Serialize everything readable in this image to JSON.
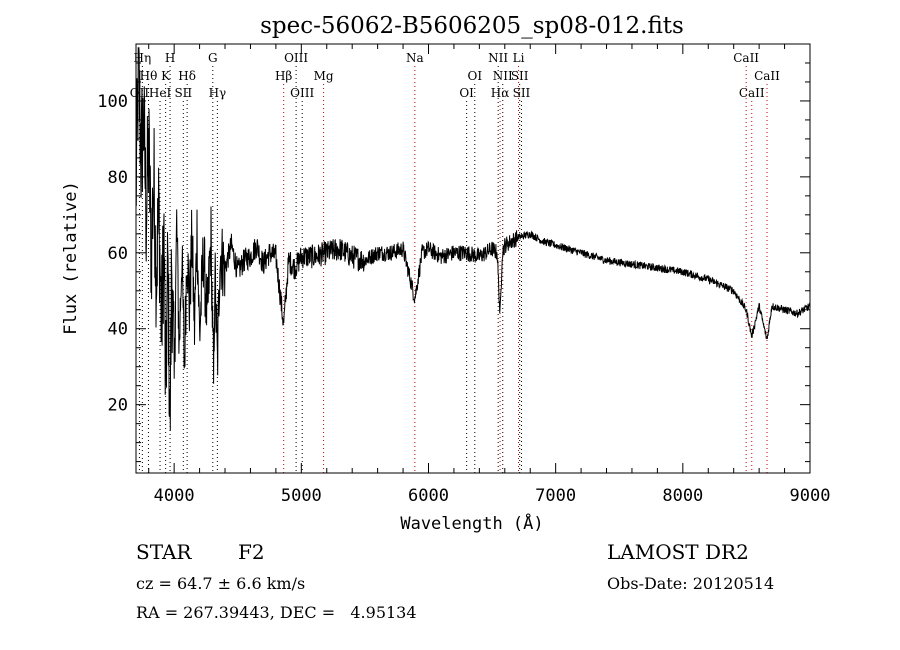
{
  "title": "spec-56062-B5606205_sp08-012.fits",
  "chart_data": {
    "type": "line",
    "xlabel": "Wavelength (Å)",
    "ylabel": "Flux (relative)",
    "xlim": [
      3700,
      9000
    ],
    "ylim": [
      2,
      115
    ],
    "x_ticks": [
      4000,
      5000,
      6000,
      7000,
      8000,
      9000
    ],
    "y_ticks": [
      20,
      40,
      60,
      80,
      100
    ],
    "grid": false,
    "series": [
      {
        "line_color": "#000000",
        "x": [
          3700,
          3720,
          3740,
          3760,
          3780,
          3800,
          3820,
          3840,
          3860,
          3880,
          3900,
          3920,
          3933,
          3950,
          3968,
          3980,
          4000,
          4020,
          4040,
          4060,
          4080,
          4102,
          4120,
          4140,
          4160,
          4180,
          4200,
          4230,
          4260,
          4290,
          4310,
          4320,
          4340,
          4360,
          4400,
          4450,
          4500,
          4550,
          4600,
          4650,
          4700,
          4750,
          4800,
          4861,
          4900,
          4950,
          5000,
          5100,
          5200,
          5300,
          5400,
          5500,
          5600,
          5700,
          5800,
          5893,
          5950,
          6000,
          6100,
          6200,
          6300,
          6400,
          6500,
          6540,
          6563,
          6580,
          6600,
          6700,
          6800,
          6900,
          7000,
          7200,
          7400,
          7600,
          7800,
          8000,
          8200,
          8400,
          8498,
          8542,
          8600,
          8662,
          8700,
          8800,
          8900,
          9000
        ],
        "y": [
          75,
          110,
          85,
          95,
          70,
          88,
          60,
          80,
          55,
          72,
          40,
          65,
          20,
          58,
          12,
          60,
          25,
          68,
          35,
          60,
          30,
          62,
          45,
          64,
          40,
          66,
          38,
          60,
          42,
          64,
          25,
          55,
          30,
          60,
          56,
          62,
          55,
          58,
          59,
          62,
          57,
          60,
          59,
          41,
          58,
          56,
          59,
          59,
          60,
          61,
          59,
          58,
          60,
          60,
          61,
          48,
          60,
          61,
          59,
          60,
          60,
          59,
          61,
          60,
          43,
          60,
          62,
          64,
          65,
          63,
          62,
          60,
          58,
          57,
          56,
          55,
          53,
          50,
          45,
          38,
          46,
          37,
          46,
          45,
          44,
          46
        ]
      }
    ],
    "line_markers": [
      {
        "wl": 3750,
        "label": "Hη",
        "row": 0,
        "color": "#000000"
      },
      {
        "wl": 3798,
        "label": "Hθ",
        "row": 1,
        "color": "#000000"
      },
      {
        "wl": 3727,
        "label": "OII",
        "row": 2,
        "color": "#000000"
      },
      {
        "wl": 3889,
        "label": "HeI",
        "row": 2,
        "color": "#000000"
      },
      {
        "wl": 3933,
        "label": "K",
        "row": 1,
        "color": "#000000"
      },
      {
        "wl": 3968,
        "label": "H",
        "row": 0,
        "color": "#000000"
      },
      {
        "wl": 4072,
        "label": "SII",
        "row": 2,
        "color": "#000000"
      },
      {
        "wl": 4102,
        "label": "Hδ",
        "row": 1,
        "color": "#000000"
      },
      {
        "wl": 4304,
        "label": "G",
        "row": 0,
        "color": "#000000"
      },
      {
        "wl": 4340,
        "label": "Hγ",
        "row": 3,
        "color": "#000000"
      },
      {
        "wl": 4861,
        "label": "Hβ",
        "row": 1,
        "color": "#cc0000"
      },
      {
        "wl": 4959,
        "label": "OIII",
        "row": 0,
        "color": "#000000"
      },
      {
        "wl": 5007,
        "label": "OIII",
        "row": 2,
        "color": "#000000"
      },
      {
        "wl": 5175,
        "label": "Mg",
        "row": 1,
        "color": "#cc0000"
      },
      {
        "wl": 5893,
        "label": "Na",
        "row": 0,
        "color": "#cc0000"
      },
      {
        "wl": 6300,
        "label": "OI",
        "row": 2,
        "color": "#000000"
      },
      {
        "wl": 6364,
        "label": "OI",
        "row": 1,
        "color": "#000000"
      },
      {
        "wl": 6548,
        "label": "NII",
        "row": 0,
        "color": "#000000"
      },
      {
        "wl": 6563,
        "label": "Hα",
        "row": 2,
        "color": "#cc0000"
      },
      {
        "wl": 6584,
        "label": "NII",
        "row": 1,
        "color": "#000000"
      },
      {
        "wl": 6708,
        "label": "Li",
        "row": 0,
        "color": "#cc0000"
      },
      {
        "wl": 6717,
        "label": "SII",
        "row": 1,
        "color": "#000000"
      },
      {
        "wl": 6731,
        "label": "SII",
        "row": 2,
        "color": "#000000"
      },
      {
        "wl": 8498,
        "label": "CaII",
        "row": 0,
        "color": "#cc0000"
      },
      {
        "wl": 8542,
        "label": "CaII",
        "row": 2,
        "color": "#cc0000"
      },
      {
        "wl": 8662,
        "label": "CaII",
        "row": 1,
        "color": "#cc0000"
      }
    ]
  },
  "info": {
    "class_label": "STAR",
    "subclass": "F2",
    "survey": "LAMOST DR2",
    "cz": "cz = 64.7 ± 6.6 km/s",
    "obs_date": "Obs-Date: 20120514",
    "coords": "RA = 267.39443, DEC =   4.95134"
  }
}
